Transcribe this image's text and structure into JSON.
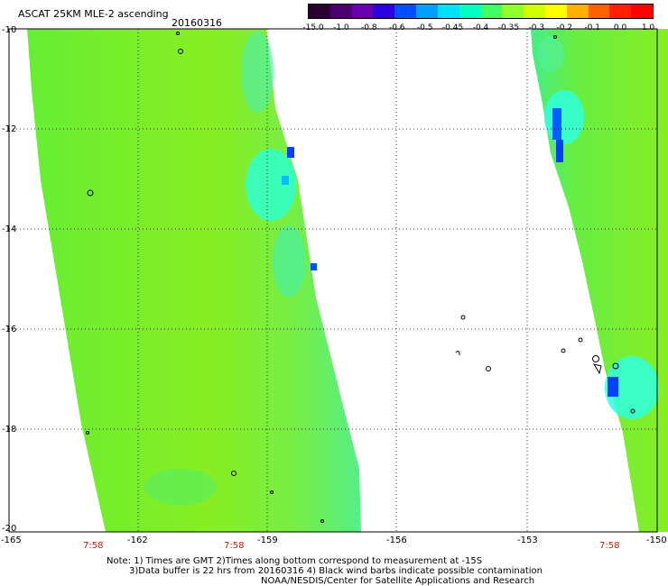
{
  "header": {
    "title": "ASCAT 25KM MLE-2 ascending",
    "date": "20160316"
  },
  "colorbar": {
    "colors": [
      "#2a0030",
      "#4b0070",
      "#6a00b0",
      "#2a00e0",
      "#0050ff",
      "#00a0ff",
      "#00e0ff",
      "#00ffc0",
      "#40ff60",
      "#90ff30",
      "#d0ff00",
      "#ffff00",
      "#ffb000",
      "#ff6000",
      "#ff2000",
      "#ff0000"
    ],
    "labels": [
      "-15.0",
      "-1.0",
      "-0.8",
      "-0.6",
      "-0.5",
      "-0.45",
      "-0.4",
      "-0.35",
      "-0.3",
      "-0.2",
      "-0.1",
      "0.0",
      "1.0"
    ]
  },
  "axes": {
    "y_labels": [
      "-10",
      "-12",
      "-14",
      "-16",
      "-18",
      "-20"
    ],
    "x_labels": [
      "-165",
      "-162",
      "-159",
      "-156",
      "-153",
      "-150"
    ],
    "time_labels": [
      "7:58",
      "7:58",
      "7:58"
    ]
  },
  "notes": {
    "line1": "Note: 1) Times are GMT 2)Times along bottom correspond to measurement at -15S",
    "line2": "3)Data buffer is 22 hrs from 20160316 4) Black wind barbs indicate possible contamination",
    "line3": "NOAA/NESDIS/Center for Satellite Applications and Research"
  },
  "map_data": {
    "colors": {
      "green_main": "#88ee22",
      "green_light": "#99f022",
      "green_mid": "#66ee44",
      "cyan_green": "#44f0a0",
      "cyan": "#22ffe0",
      "blue": "#0040ff",
      "light_blue": "#00c0ff"
    }
  }
}
